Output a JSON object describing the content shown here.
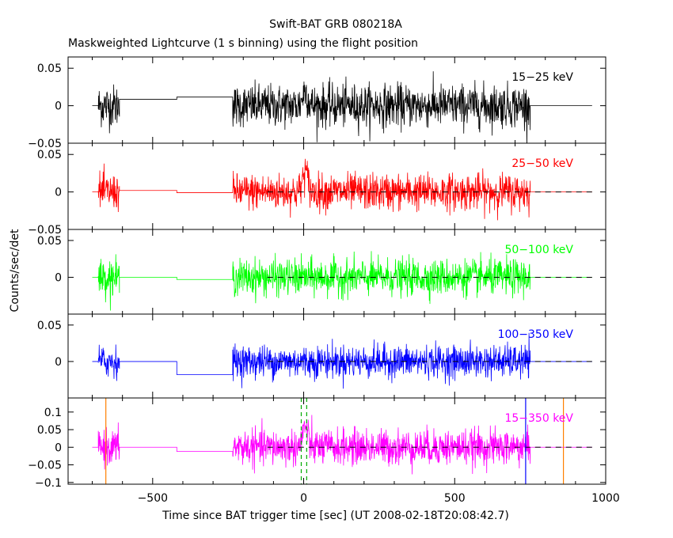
{
  "title": "Swift-BAT GRB 080218A",
  "subtitle": "Maskweighted Lightcurve (1 s binning) using the flight position",
  "chart_data": {
    "type": "line",
    "xlabel": "Time since BAT trigger time [sec] (UT 2008-02-18T20:08:42.7)",
    "ylabel": "Counts/sec/det",
    "xlim": [
      -780,
      1000
    ],
    "xticks": [
      -500,
      0,
      500,
      1000
    ],
    "xtick_labels": [
      "−500",
      "0",
      "500",
      "1000"
    ],
    "data_segments": [
      [
        -680,
        -610
      ],
      [
        -235,
        750
      ]
    ],
    "gap_segments": [
      [
        -610,
        -420
      ],
      [
        -420,
        -235
      ]
    ],
    "extend_to": 955,
    "background_dash_start": -120,
    "panels": [
      {
        "band": "15−25 keV",
        "color": "#000000",
        "ylim": [
          -0.05,
          0.065
        ],
        "yticks": [
          0.05,
          0,
          -0.05
        ],
        "ytick_labels": [
          "0.05",
          "0",
          "−0.05"
        ],
        "noise_sigma": 0.014,
        "gap_levels": [
          0.0085,
          0.0115
        ],
        "peak": 0.02,
        "dashed_zero": false
      },
      {
        "band": "25−50 keV",
        "color": "#ff0000",
        "ylim": [
          -0.05,
          0.065
        ],
        "yticks": [
          0.05,
          0,
          -0.05
        ],
        "ytick_labels": [
          "0.05",
          "0",
          "−0.05"
        ],
        "noise_sigma": 0.012,
        "gap_levels": [
          0.002,
          -0.001
        ],
        "peak": 0.028,
        "dashed_zero": true
      },
      {
        "band": "50−100 keV",
        "color": "#00ff00",
        "ylim": [
          -0.05,
          0.065
        ],
        "yticks": [
          0.05,
          0
        ],
        "ytick_labels": [
          "0.05",
          "0"
        ],
        "noise_sigma": 0.012,
        "gap_levels": [
          0.0,
          -0.003
        ],
        "peak": 0.0,
        "dashed_zero": true
      },
      {
        "band": "100−350 keV",
        "color": "#0000ff",
        "ylim": [
          -0.05,
          0.065
        ],
        "yticks": [
          0.05,
          0
        ],
        "ytick_labels": [
          "0.05",
          "0"
        ],
        "noise_sigma": 0.011,
        "gap_levels": [
          0.0,
          -0.018
        ],
        "peak": 0.0,
        "dashed_zero": true
      },
      {
        "band": "15−350 keV",
        "color": "#ff00ff",
        "ylim": [
          -0.105,
          0.14
        ],
        "yticks": [
          0.1,
          0.05,
          0,
          -0.05,
          -0.1
        ],
        "ytick_labels": [
          "0.1",
          "0.05",
          "0",
          "−0.05",
          "−0.1"
        ],
        "noise_sigma": 0.025,
        "gap_levels": [
          0.0,
          -0.012
        ],
        "peak": 0.06,
        "dashed_zero": true,
        "vlines": [
          {
            "x": -655,
            "color": "#ff8000",
            "style": "solid"
          },
          {
            "x": 860,
            "color": "#ff8000",
            "style": "solid"
          },
          {
            "x": 735,
            "color": "#0000ff",
            "style": "solid"
          },
          {
            "x": -8,
            "color": "#00aa00",
            "style": "dashed"
          },
          {
            "x": 10,
            "color": "#00aa00",
            "style": "dashed"
          }
        ]
      }
    ]
  }
}
